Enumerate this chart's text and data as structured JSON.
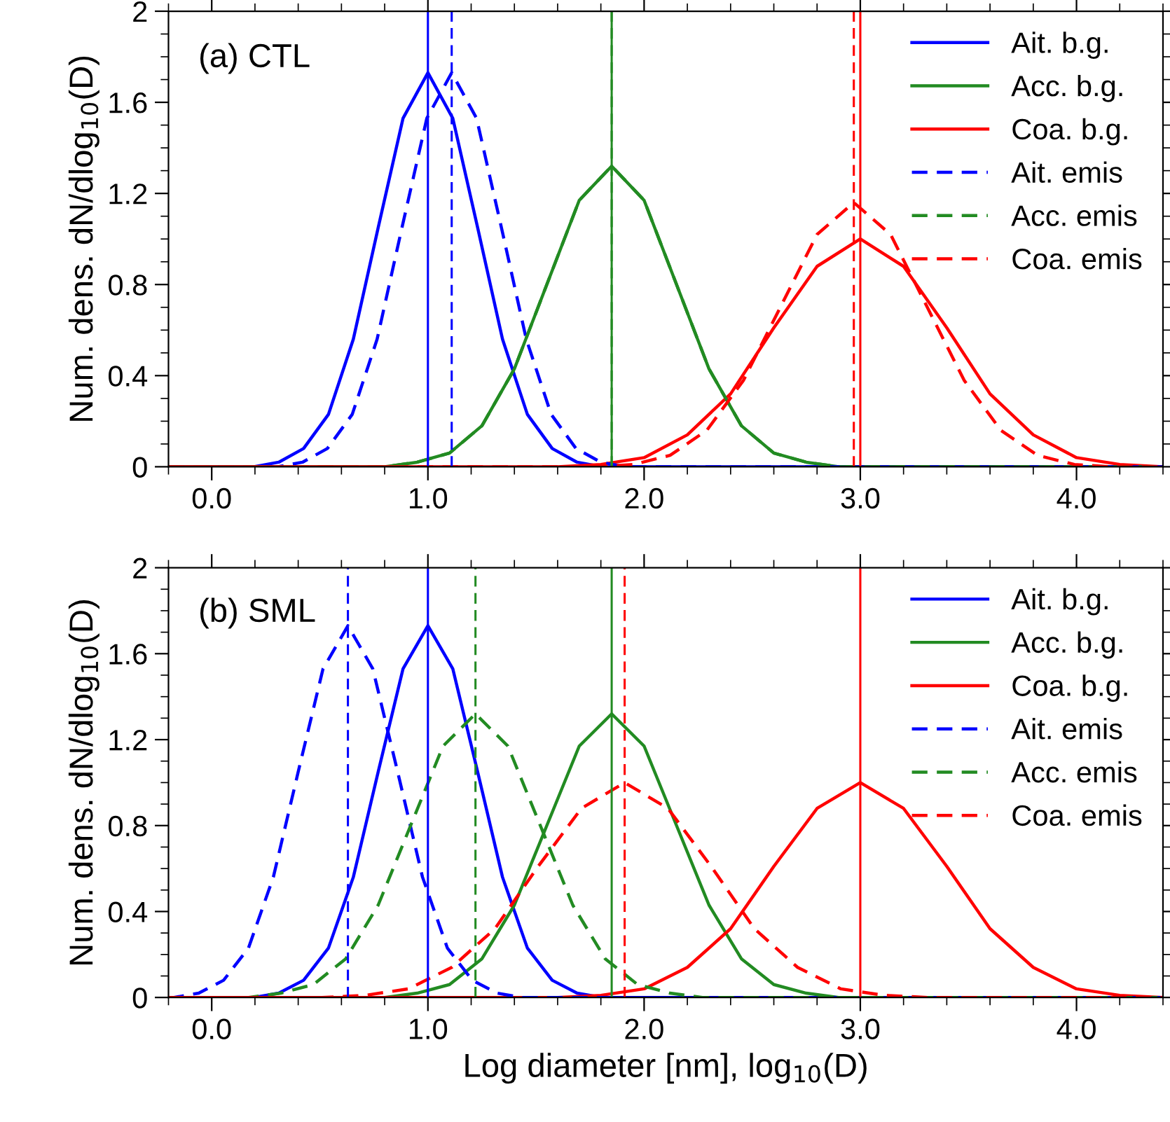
{
  "chart_data": [
    {
      "type": "line",
      "annotations": [
        "(a) CTL"
      ],
      "ylabel": "Num. dens. dN/dlog$_{10}$(D)",
      "xlim": [
        -0.2,
        4.4
      ],
      "ylim": [
        0,
        2
      ],
      "xticks": [
        {
          "value": 0,
          "label": "0.0"
        },
        {
          "value": 1,
          "label": "1.0"
        },
        {
          "value": 2,
          "label": "2.0"
        },
        {
          "value": 3,
          "label": "3.0"
        },
        {
          "value": 4,
          "label": "4.0"
        }
      ],
      "yticks": [
        0,
        0.4,
        0.8,
        1.2,
        1.6,
        2
      ],
      "legend": "top right",
      "grid": false,
      "series": [
        {
          "name": "Ait. b.g.",
          "color": "#0000ff",
          "line_style": "solid",
          "x": [
            -0.2,
            0.195,
            0.31,
            0.425,
            0.54,
            0.655,
            0.77,
            0.885,
            1.0,
            1.115,
            1.23,
            1.345,
            1.46,
            1.575,
            1.69,
            1.805,
            4.4
          ],
          "values": [
            0,
            0,
            0.02,
            0.08,
            0.23,
            0.56,
            1.05,
            1.53,
            1.73,
            1.53,
            1.05,
            0.56,
            0.23,
            0.08,
            0.02,
            0,
            0
          ]
        },
        {
          "name": "Acc. b.g.",
          "color": "#228b22",
          "line_style": "solid",
          "x": [
            -0.2,
            0.8,
            0.95,
            1.1,
            1.25,
            1.4,
            1.55,
            1.7,
            1.85,
            2.0,
            2.15,
            2.3,
            2.45,
            2.6,
            2.75,
            2.9,
            4.4
          ],
          "values": [
            0,
            0,
            0.02,
            0.06,
            0.18,
            0.43,
            0.8,
            1.17,
            1.32,
            1.17,
            0.8,
            0.43,
            0.18,
            0.06,
            0.02,
            0,
            0
          ]
        },
        {
          "name": "Coa. b.g.",
          "color": "#ff0000",
          "line_style": "solid",
          "x": [
            -0.2,
            1.6,
            1.8,
            2.0,
            2.2,
            2.4,
            2.6,
            2.8,
            3.0,
            3.2,
            3.4,
            3.6,
            3.8,
            4.0,
            4.2,
            4.4
          ],
          "values": [
            0,
            0,
            0.01,
            0.04,
            0.14,
            0.32,
            0.61,
            0.88,
            1.0,
            0.88,
            0.61,
            0.32,
            0.14,
            0.04,
            0.01,
            0
          ]
        },
        {
          "name": "Ait. emis",
          "color": "#0000ff",
          "line_style": "dashed",
          "x": [
            -0.2,
            0.305,
            0.42,
            0.535,
            0.65,
            0.765,
            0.88,
            0.995,
            1.11,
            1.225,
            1.34,
            1.455,
            1.57,
            1.685,
            1.8,
            1.915,
            4.4
          ],
          "values": [
            0,
            0,
            0.02,
            0.08,
            0.23,
            0.56,
            1.05,
            1.53,
            1.73,
            1.53,
            1.05,
            0.56,
            0.23,
            0.08,
            0.02,
            0,
            0
          ]
        },
        {
          "name": "Acc. emis",
          "color": "#228b22",
          "line_style": "dashed",
          "x": [
            -0.2,
            0.8,
            0.95,
            1.1,
            1.25,
            1.4,
            1.55,
            1.7,
            1.85,
            2.0,
            2.15,
            2.3,
            2.45,
            2.6,
            2.75,
            2.9,
            4.4
          ],
          "values": [
            0,
            0,
            0.02,
            0.06,
            0.18,
            0.43,
            0.8,
            1.17,
            1.32,
            1.17,
            0.8,
            0.43,
            0.18,
            0.06,
            0.02,
            0,
            0
          ]
        },
        {
          "name": "Coa. emis",
          "color": "#ff0000",
          "line_style": "dashed",
          "x": [
            -0.2,
            1.78,
            1.95,
            2.12,
            2.29,
            2.46,
            2.63,
            2.8,
            2.97,
            3.14,
            3.31,
            3.48,
            3.65,
            3.82,
            3.99,
            4.16,
            4.4
          ],
          "values": [
            0,
            0,
            0.01,
            0.05,
            0.16,
            0.38,
            0.7,
            1.02,
            1.16,
            1.02,
            0.7,
            0.38,
            0.16,
            0.05,
            0.01,
            0,
            0
          ]
        }
      ],
      "ref_lines": [
        {
          "axis": "x",
          "value": 1.0,
          "color": "#0000ff",
          "line_style": "solid"
        },
        {
          "axis": "x",
          "value": 1.11,
          "color": "#0000ff",
          "line_style": "dashed"
        },
        {
          "axis": "x",
          "value": 1.85,
          "color": "#228b22",
          "line_style": "solid"
        },
        {
          "axis": "x",
          "value": 1.85,
          "color": "#228b22",
          "line_style": "dashed"
        },
        {
          "axis": "x",
          "value": 3.0,
          "color": "#ff0000",
          "line_style": "solid"
        },
        {
          "axis": "x",
          "value": 2.97,
          "color": "#ff0000",
          "line_style": "dashed"
        }
      ]
    },
    {
      "type": "line",
      "annotations": [
        "(b) SML"
      ],
      "ylabel": "Num. dens. dN/dlog$_{10}$(D)",
      "xlabel": "Log diameter [nm], log$_{10}$(D)",
      "xlim": [
        -0.2,
        4.4
      ],
      "ylim": [
        0,
        2
      ],
      "xticks": [
        {
          "value": 0,
          "label": "0.0"
        },
        {
          "value": 1,
          "label": "1.0"
        },
        {
          "value": 2,
          "label": "2.0"
        },
        {
          "value": 3,
          "label": "3.0"
        },
        {
          "value": 4,
          "label": "4.0"
        }
      ],
      "yticks": [
        0,
        0.4,
        0.8,
        1.2,
        1.6,
        2
      ],
      "legend": "top right",
      "grid": false,
      "series": [
        {
          "name": "Ait. b.g.",
          "color": "#0000ff",
          "line_style": "solid",
          "x": [
            -0.2,
            0.195,
            0.31,
            0.425,
            0.54,
            0.655,
            0.77,
            0.885,
            1.0,
            1.115,
            1.23,
            1.345,
            1.46,
            1.575,
            1.69,
            1.805,
            4.4
          ],
          "values": [
            0,
            0,
            0.02,
            0.08,
            0.23,
            0.56,
            1.05,
            1.53,
            1.73,
            1.53,
            1.05,
            0.56,
            0.23,
            0.08,
            0.02,
            0,
            0
          ]
        },
        {
          "name": "Acc. b.g.",
          "color": "#228b22",
          "line_style": "solid",
          "x": [
            -0.2,
            0.8,
            0.95,
            1.1,
            1.25,
            1.4,
            1.55,
            1.7,
            1.85,
            2.0,
            2.15,
            2.3,
            2.45,
            2.6,
            2.75,
            2.9,
            4.4
          ],
          "values": [
            0,
            0,
            0.02,
            0.06,
            0.18,
            0.43,
            0.8,
            1.17,
            1.32,
            1.17,
            0.8,
            0.43,
            0.18,
            0.06,
            0.02,
            0,
            0
          ]
        },
        {
          "name": "Coa. b.g.",
          "color": "#ff0000",
          "line_style": "solid",
          "x": [
            -0.2,
            1.6,
            1.8,
            2.0,
            2.2,
            2.4,
            2.6,
            2.8,
            3.0,
            3.2,
            3.4,
            3.6,
            3.8,
            4.0,
            4.2,
            4.4
          ],
          "values": [
            0,
            0,
            0.01,
            0.04,
            0.14,
            0.32,
            0.61,
            0.88,
            1.0,
            0.88,
            0.61,
            0.32,
            0.14,
            0.04,
            0.01,
            0
          ]
        },
        {
          "name": "Ait. emis",
          "color": "#0000ff",
          "line_style": "dashed",
          "x": [
            -0.2,
            -0.175,
            -0.06,
            0.055,
            0.17,
            0.285,
            0.4,
            0.515,
            0.63,
            0.745,
            0.86,
            0.975,
            1.09,
            1.205,
            1.32,
            1.435,
            4.4
          ],
          "values": [
            0,
            0,
            0.02,
            0.08,
            0.23,
            0.56,
            1.05,
            1.53,
            1.73,
            1.53,
            1.05,
            0.56,
            0.23,
            0.08,
            0.02,
            0,
            0
          ]
        },
        {
          "name": "Acc. emis",
          "color": "#228b22",
          "line_style": "dashed",
          "x": [
            -0.2,
            0.17,
            0.32,
            0.47,
            0.62,
            0.77,
            0.92,
            1.07,
            1.22,
            1.37,
            1.52,
            1.67,
            1.82,
            1.97,
            2.12,
            2.27,
            4.4
          ],
          "values": [
            0,
            0,
            0.02,
            0.06,
            0.18,
            0.43,
            0.8,
            1.17,
            1.32,
            1.17,
            0.8,
            0.43,
            0.18,
            0.06,
            0.02,
            0,
            0
          ]
        },
        {
          "name": "Coa. emis",
          "color": "#ff0000",
          "line_style": "dashed",
          "x": [
            -0.2,
            0.51,
            0.71,
            0.91,
            1.11,
            1.31,
            1.51,
            1.71,
            1.91,
            2.11,
            2.31,
            2.51,
            2.71,
            2.91,
            3.11,
            3.31,
            4.4
          ],
          "values": [
            0,
            0,
            0.01,
            0.04,
            0.14,
            0.32,
            0.61,
            0.88,
            1.0,
            0.88,
            0.61,
            0.32,
            0.14,
            0.04,
            0.01,
            0,
            0
          ]
        }
      ],
      "ref_lines": [
        {
          "axis": "x",
          "value": 0.63,
          "color": "#0000ff",
          "line_style": "dashed"
        },
        {
          "axis": "x",
          "value": 1.0,
          "color": "#0000ff",
          "line_style": "solid"
        },
        {
          "axis": "x",
          "value": 1.22,
          "color": "#228b22",
          "line_style": "dashed"
        },
        {
          "axis": "x",
          "value": 1.85,
          "color": "#228b22",
          "line_style": "solid"
        },
        {
          "axis": "x",
          "value": 1.91,
          "color": "#ff0000",
          "line_style": "dashed"
        },
        {
          "axis": "x",
          "value": 3.0,
          "color": "#ff0000",
          "line_style": "solid"
        }
      ]
    }
  ]
}
